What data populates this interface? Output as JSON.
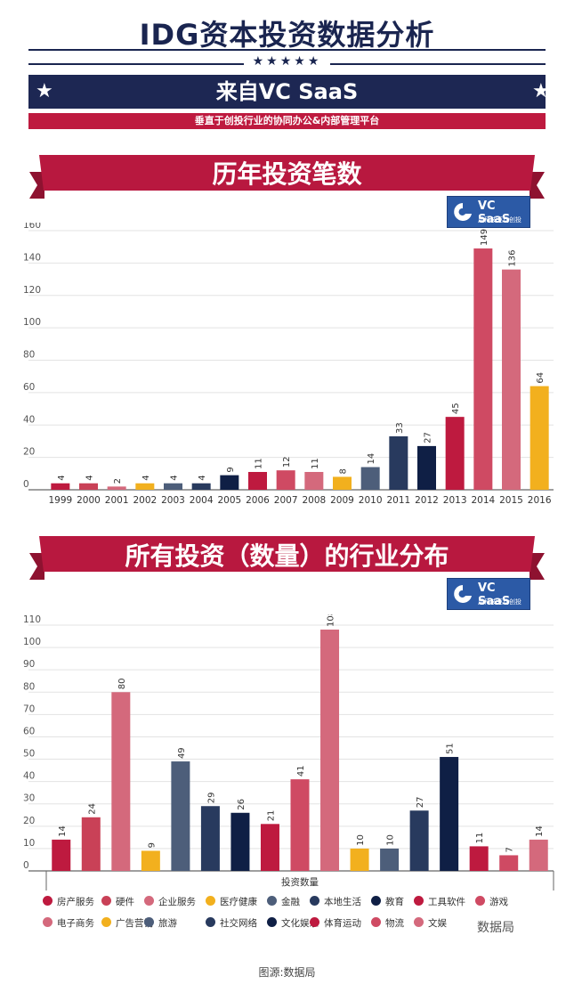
{
  "header": {
    "title": "IDG资本投资数据分析",
    "stars": "★★★★★",
    "source_title": "来自VC SaaS",
    "tagline": "垂直于创投行业的协同办公&内部管理平台"
  },
  "logo": {
    "name": "VC SaaS",
    "sub": "用科技驱动创投"
  },
  "colors": {
    "navy": "#1d2753",
    "red": "#be1a3f",
    "banner_red": "#b8183f",
    "axis": "#888888",
    "grid": "#e3e3e3"
  },
  "chart_data": [
    {
      "type": "bar",
      "title": "历年投资笔数",
      "categories": [
        "1999",
        "2000",
        "2001",
        "2002",
        "2003",
        "2004",
        "2005",
        "2006",
        "2007",
        "2008",
        "2009",
        "2010",
        "2011",
        "2012",
        "2013",
        "2014",
        "2015",
        "2016"
      ],
      "values": [
        4,
        4,
        2,
        4,
        4,
        4,
        9,
        11,
        12,
        11,
        8,
        14,
        33,
        27,
        45,
        149,
        136,
        64
      ],
      "colors": [
        "#be1a3f",
        "#c94157",
        "#d4697c",
        "#f2b01e",
        "#4d5e7a",
        "#283a5e",
        "#0f1f45",
        "#be1a3f",
        "#cf4a63",
        "#d4697c",
        "#f2b01e",
        "#4d5e7a",
        "#283a5e",
        "#0f1f45",
        "#be1a3f",
        "#cf4a63",
        "#d4697c",
        "#f2b01e"
      ],
      "y_ticks": [
        0,
        20,
        40,
        60,
        80,
        100,
        120,
        140,
        160
      ],
      "ylim": [
        0,
        160
      ],
      "grid": true
    },
    {
      "type": "bar",
      "title": "所有投资（数量）的行业分布",
      "xlabel": "投资数量",
      "categories": [
        "房产服务",
        "硬件",
        "企业服务",
        "医疗健康",
        "金融",
        "本地生活",
        "教育",
        "工具软件",
        "游戏",
        "电子商务",
        "广告营销",
        "旅游",
        "社交网络",
        "文化娱乐",
        "体育运动",
        "物流",
        "文娱"
      ],
      "values": [
        14,
        24,
        80,
        9,
        49,
        29,
        26,
        21,
        41,
        108,
        10,
        10,
        27,
        51,
        11,
        7,
        14
      ],
      "colors": [
        "#be1a3f",
        "#c94157",
        "#d4697c",
        "#f2b01e",
        "#4d5e7a",
        "#283a5e",
        "#0f1f45",
        "#be1a3f",
        "#cf4a63",
        "#d4697c",
        "#f2b01e",
        "#4d5e7a",
        "#283a5e",
        "#0f1f45",
        "#be1a3f",
        "#cf4a63",
        "#d4697c"
      ],
      "y_ticks": [
        0,
        10,
        20,
        30,
        40,
        50,
        60,
        70,
        80,
        90,
        100,
        110
      ],
      "ylim": [
        0,
        110
      ],
      "grid": true,
      "legend": [
        {
          "label": "房产服务",
          "color": "#be1a3f"
        },
        {
          "label": "硬件",
          "color": "#c94157"
        },
        {
          "label": "企业服务",
          "color": "#d4697c"
        },
        {
          "label": "医疗健康",
          "color": "#f2b01e"
        },
        {
          "label": "金融",
          "color": "#4d5e7a"
        },
        {
          "label": "本地生活",
          "color": "#283a5e"
        },
        {
          "label": "教育",
          "color": "#0f1f45"
        },
        {
          "label": "工具软件",
          "color": "#be1a3f"
        },
        {
          "label": "游戏",
          "color": "#cf4a63"
        },
        {
          "label": "电子商务",
          "color": "#d4697c"
        },
        {
          "label": "广告营销",
          "color": "#f2b01e"
        },
        {
          "label": "旅游",
          "color": "#4d5e7a"
        },
        {
          "label": "社交网络",
          "color": "#283a5e"
        },
        {
          "label": "文化娱乐",
          "color": "#0f1f45"
        },
        {
          "label": "体育运动",
          "color": "#be1a3f"
        },
        {
          "label": "物流",
          "color": "#cf4a63"
        },
        {
          "label": "文娱",
          "color": "#d4697c"
        }
      ],
      "legend_position": "bottom"
    }
  ],
  "watermark": "数据局",
  "image_credit": "图源:数据局"
}
